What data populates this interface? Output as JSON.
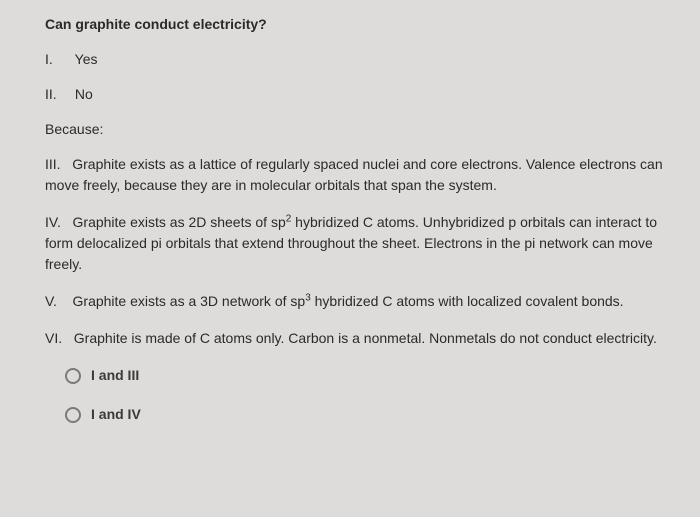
{
  "question": {
    "title": "Can graphite conduct electricity?",
    "answers": {
      "i": {
        "numeral": "I.",
        "text": "Yes"
      },
      "ii": {
        "numeral": "II.",
        "text": "No"
      }
    },
    "because_label": "Because:",
    "statements": {
      "iii": {
        "numeral": "III.",
        "text": "Graphite exists as a lattice of regularly spaced nuclei and core electrons. Valence electrons can move freely, because they are in molecular orbitals that span the system."
      },
      "iv": {
        "numeral": "IV.",
        "text_pre": "Graphite exists as 2D sheets of sp",
        "sup": "2",
        "text_post": " hybridized C atoms. Unhybridized p orbitals can interact to form delocalized pi orbitals that extend throughout the sheet. Electrons in the pi network can move freely."
      },
      "v": {
        "numeral": "V.",
        "text_pre": "Graphite exists as a 3D network of sp",
        "sup": "3",
        "text_post": " hybridized C atoms with localized covalent bonds."
      },
      "vi": {
        "numeral": "VI.",
        "text": "Graphite is made of C atoms only. Carbon is a nonmetal. Nonmetals do not conduct electricity."
      }
    },
    "options": {
      "a": "I and III",
      "b": "I and IV"
    }
  },
  "styling": {
    "background_color": "#dddcda",
    "text_color": "#2a2a2a",
    "font_family": "Arial",
    "base_font_size": 14,
    "radio_border_color": "#7a7a7a"
  }
}
